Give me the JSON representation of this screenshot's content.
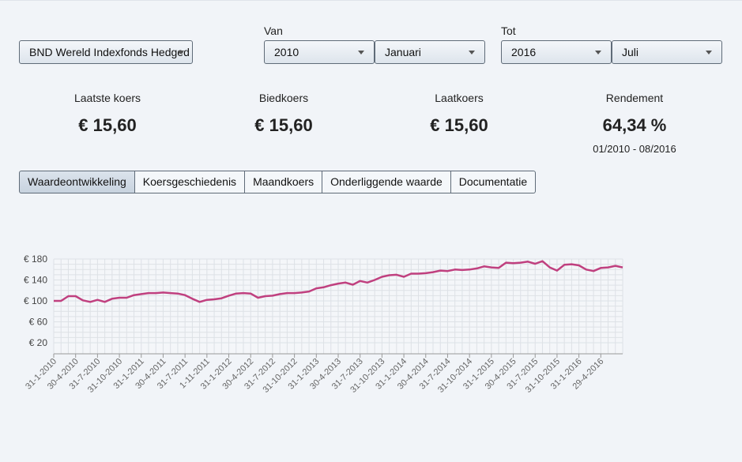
{
  "fund_select": {
    "value": "BND Wereld Indexfonds Hedged"
  },
  "from": {
    "label": "Van",
    "year": "2010",
    "month": "Januari"
  },
  "to": {
    "label": "Tot",
    "year": "2016",
    "month": "Juli"
  },
  "stats": [
    {
      "label": "Laatste koers",
      "value": "€ 15,60"
    },
    {
      "label": "Biedkoers",
      "value": "€ 15,60"
    },
    {
      "label": "Laatkoers",
      "value": "€ 15,60"
    },
    {
      "label": "Rendement",
      "value": "64,34 %",
      "sub": "01/2010 - 08/2016"
    }
  ],
  "tabs": [
    {
      "label": "Waardeontwikkeling",
      "active": true
    },
    {
      "label": "Koersgeschiedenis",
      "active": false
    },
    {
      "label": "Maandkoers",
      "active": false
    },
    {
      "label": "Onderliggende waarde",
      "active": false
    },
    {
      "label": "Documentatie",
      "active": false
    }
  ],
  "colors": {
    "series": "#c0407f",
    "grid": "#dde1e6",
    "axis": "#999999"
  },
  "chart_data": {
    "type": "line",
    "ylim": [
      0,
      180
    ],
    "yticks": [
      20,
      60,
      100,
      140,
      180
    ],
    "ytick_labels": [
      "€ 20",
      "€ 60",
      "€ 100",
      "€ 140",
      "€ 180"
    ],
    "xtick_labels": [
      "31-1-2010",
      "30-4-2010",
      "31-7-2010",
      "31-10-2010",
      "31-1-2011",
      "30-4-2011",
      "31-7-2011",
      "1-11-2011",
      "31-1-2012",
      "30-4-2012",
      "31-7-2012",
      "31-10-2012",
      "31-1-2013",
      "30-4-2013",
      "31-7-2013",
      "31-10-2013",
      "31-1-2014",
      "30-4-2014",
      "31-7-2014",
      "31-10-2014",
      "31-1-2015",
      "30-4-2015",
      "31-7-2015",
      "31-10-2015",
      "31-1-2016",
      "29-4-2016"
    ],
    "series": [
      {
        "values": [
          100,
          100,
          109,
          109,
          101,
          98,
          102,
          98,
          104,
          106,
          106,
          111,
          113,
          115,
          115,
          116,
          115,
          114,
          111,
          104,
          98,
          102,
          103,
          105,
          110,
          114,
          115,
          114,
          106,
          109,
          110,
          113,
          115,
          115,
          116,
          118,
          124,
          126,
          130,
          133,
          135,
          131,
          138,
          135,
          140,
          146,
          149,
          150,
          146,
          152,
          152,
          153,
          155,
          158,
          157,
          160,
          159,
          160,
          162,
          166,
          164,
          163,
          173,
          172,
          173,
          175,
          171,
          176,
          164,
          158,
          169,
          170,
          168,
          160,
          157,
          163,
          164,
          167,
          164
        ]
      }
    ]
  }
}
